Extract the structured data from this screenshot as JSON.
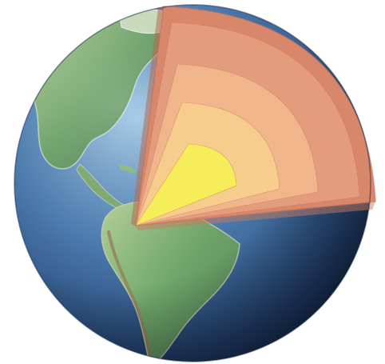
{
  "diagram": {
    "subject": "earth-interior-cutaway",
    "colors": {
      "background": "#ffffff",
      "ocean_dark": "#1f3a63",
      "ocean_mid": "#3f6fa6",
      "ocean_light": "#7fb0d8",
      "land_green": "#5f9a63",
      "land_light": "#a8cf8f",
      "land_brown": "#9a7d5a",
      "crust": "#d9876a",
      "upper_mantle": "#e49d7c",
      "lower_mantle": "#f1b58c",
      "outer_core": "#f6cd8d",
      "inner_core": "#f5ee5a"
    },
    "layers": [
      {
        "name": "crust",
        "color_key": "crust"
      },
      {
        "name": "mantle",
        "color_key": "upper_mantle"
      },
      {
        "name": "lower-mantle",
        "color_key": "lower_mantle"
      },
      {
        "name": "outer-core",
        "color_key": "outer_core"
      },
      {
        "name": "inner-core",
        "color_key": "inner_core"
      }
    ]
  }
}
